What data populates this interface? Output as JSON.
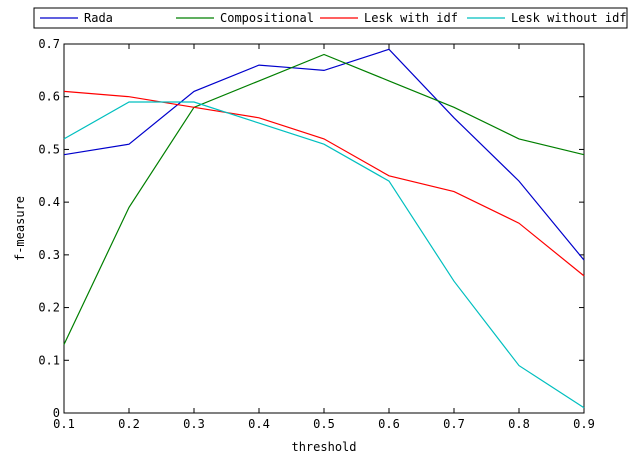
{
  "chart_data": {
    "type": "line",
    "xlabel": "threshold",
    "ylabel": "f-measure",
    "xlim": [
      0.1,
      0.9
    ],
    "ylim": [
      0,
      0.7
    ],
    "x_ticks": [
      "0.1",
      "0.2",
      "0.3",
      "0.4",
      "0.5",
      "0.6",
      "0.7",
      "0.8",
      "0.9"
    ],
    "y_ticks": [
      "0",
      "0.1",
      "0.2",
      "0.3",
      "0.4",
      "0.5",
      "0.6",
      "0.7"
    ],
    "grid": false,
    "legend_position": "top",
    "x": [
      0.1,
      0.2,
      0.3,
      0.4,
      0.5,
      0.6,
      0.7,
      0.8,
      0.9
    ],
    "series": [
      {
        "name": "Rada",
        "color": "#0000cc",
        "x": [
          0.1,
          0.2,
          0.3,
          0.4,
          0.45,
          0.5,
          0.6,
          0.7,
          0.8,
          0.9
        ],
        "values": [
          0.49,
          0.51,
          0.61,
          0.66,
          0.655,
          0.65,
          0.69,
          0.56,
          0.44,
          0.29
        ]
      },
      {
        "name": "Compositional",
        "color": "#007f00",
        "x": [
          0.1,
          0.2,
          0.3,
          0.4,
          0.5,
          0.6,
          0.7,
          0.8,
          0.9
        ],
        "values": [
          0.13,
          0.39,
          0.58,
          0.63,
          0.68,
          0.63,
          0.58,
          0.52,
          0.49
        ]
      },
      {
        "name": "Lesk with idf",
        "color": "#ff0000",
        "x": [
          0.1,
          0.2,
          0.3,
          0.4,
          0.5,
          0.6,
          0.7,
          0.8,
          0.9
        ],
        "values": [
          0.61,
          0.6,
          0.58,
          0.56,
          0.52,
          0.45,
          0.42,
          0.36,
          0.26
        ]
      },
      {
        "name": "Lesk without idf",
        "color": "#00bfbf",
        "x": [
          0.1,
          0.2,
          0.3,
          0.4,
          0.5,
          0.6,
          0.7,
          0.8,
          0.9
        ],
        "values": [
          0.52,
          0.59,
          0.59,
          0.55,
          0.51,
          0.44,
          0.25,
          0.09,
          0.01
        ]
      }
    ]
  }
}
